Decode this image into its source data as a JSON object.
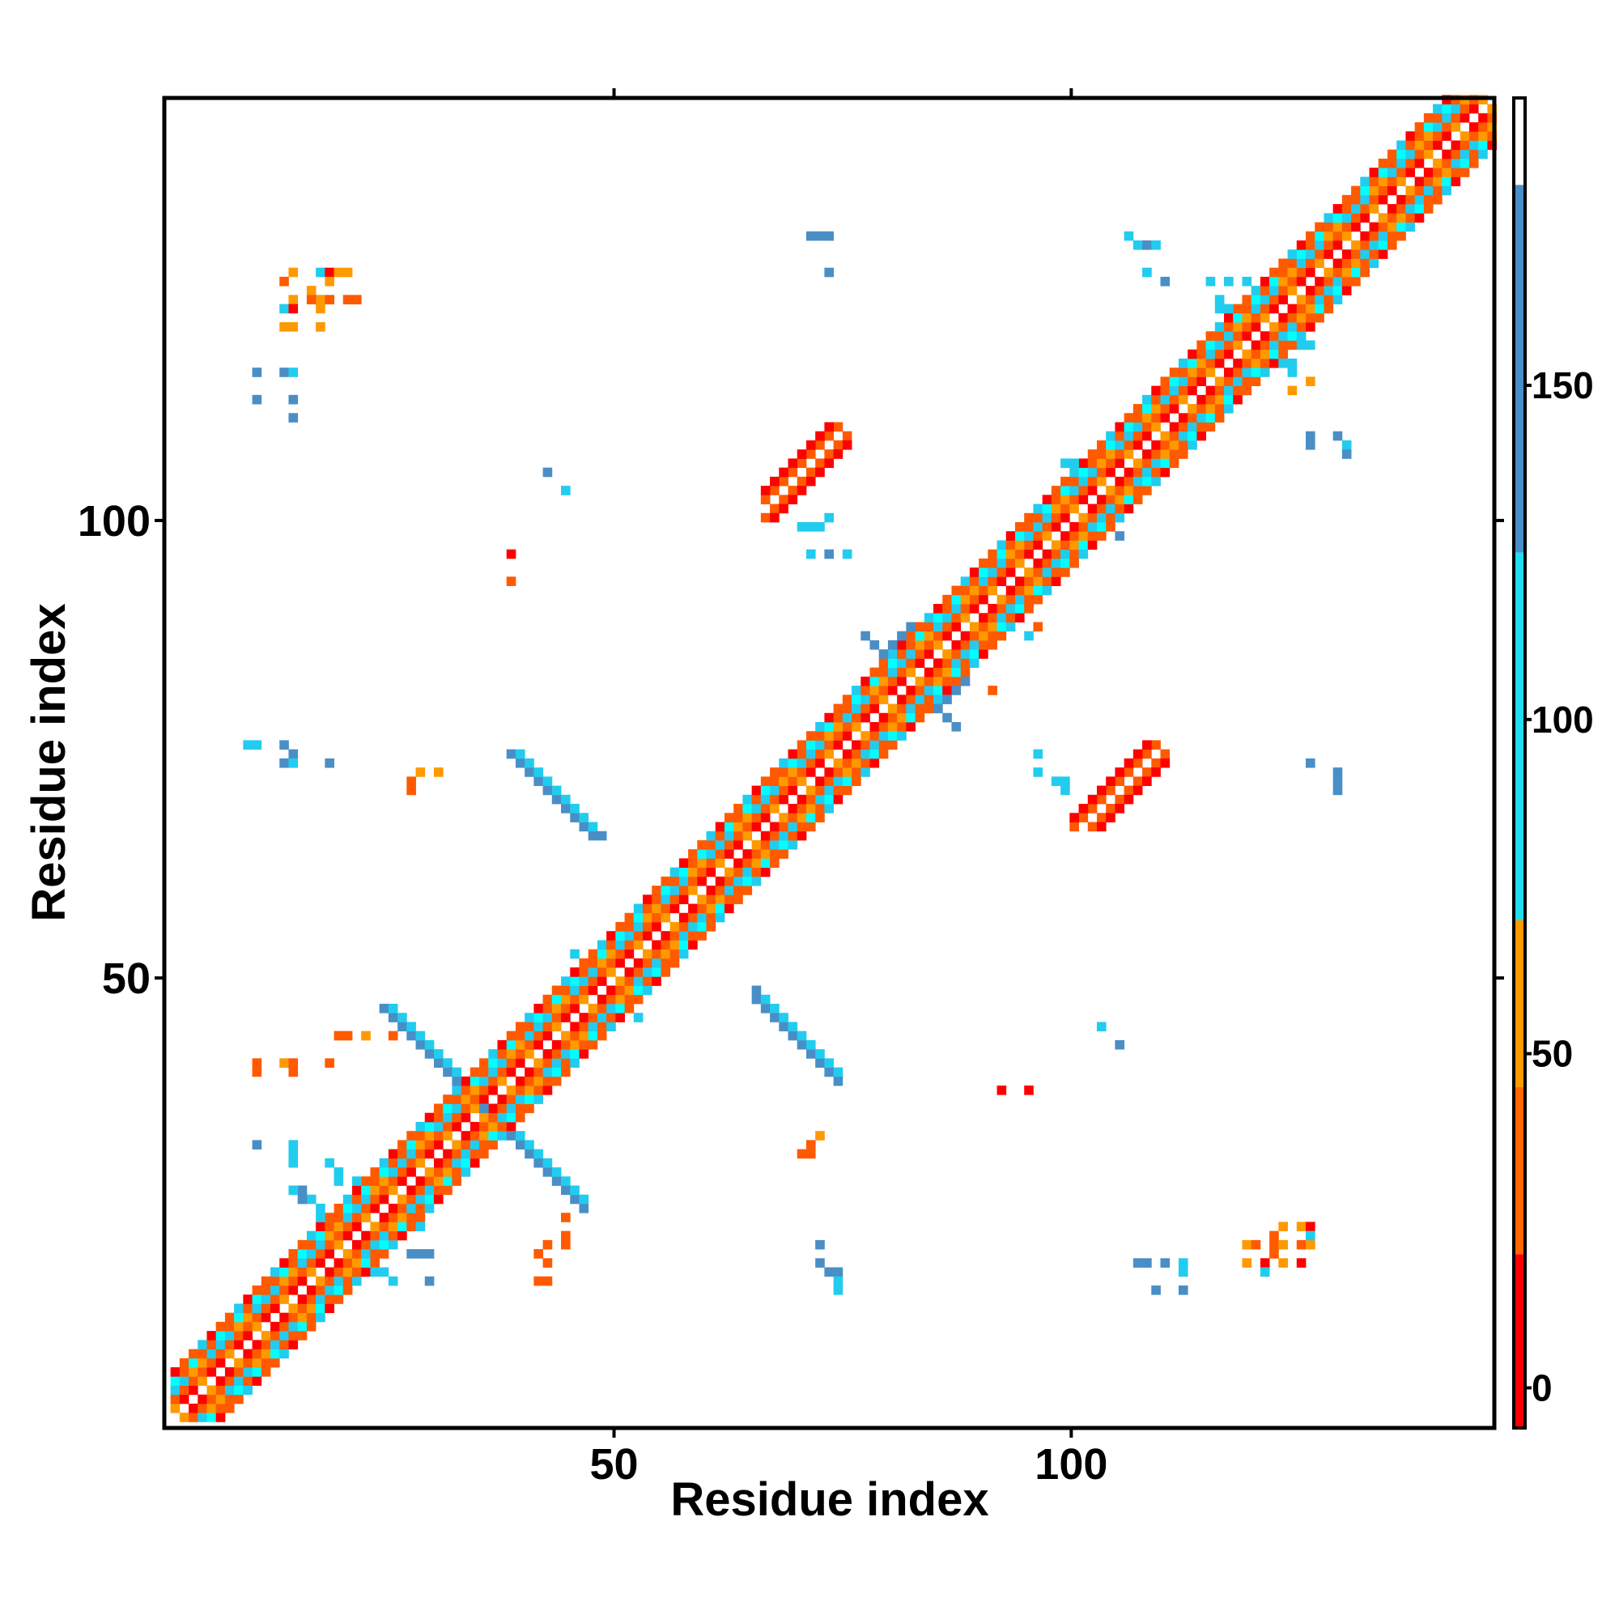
{
  "chart_data": {
    "type": "heatmap",
    "title": "",
    "xlabel": "Residue index",
    "ylabel": "Residue index",
    "n": 146,
    "xlim": [
      1,
      146
    ],
    "ylim": [
      1,
      146
    ],
    "x_ticks": [
      50,
      100
    ],
    "x_tick_labels": [
      "50",
      "100"
    ],
    "y_ticks": [
      50,
      100
    ],
    "y_tick_labels": [
      "50",
      "100"
    ],
    "grid": false,
    "legend_position": "right",
    "colorbar": {
      "min": -6,
      "max": 193,
      "ticks": [
        0,
        50,
        100,
        150
      ],
      "tick_labels": [
        "0",
        "50",
        "100",
        "150"
      ],
      "bands": [
        {
          "from": -6,
          "to": 20,
          "color": "#ff0000"
        },
        {
          "from": 20,
          "to": 45,
          "color": "#ff6600"
        },
        {
          "from": 45,
          "to": 70,
          "color": "#ff9900"
        },
        {
          "from": 70,
          "to": 125,
          "color": "#22ddee"
        },
        {
          "from": 125,
          "to": 180,
          "color": "#4a8ec6"
        },
        {
          "from": 180,
          "to": 193,
          "color": "#ffffff"
        }
      ]
    },
    "palette": {
      "c1": "#ff0000",
      "c2": "#ff5a00",
      "c3": "#ff9900",
      "c4": "#00ffff",
      "c5": "#22ccee",
      "c6": "#4a8ec6"
    },
    "diagonal": {
      "start": 1,
      "end": 146,
      "half_width": 5,
      "note": "contact map: dense band near diagonal with values 0-180"
    },
    "segments": [
      {
        "x0": 26,
        "y0": 44,
        "x1": 36,
        "y1": 34,
        "w": 1,
        "color": "c6"
      },
      {
        "x0": 27,
        "y0": 44,
        "x1": 36,
        "y1": 35,
        "w": 1,
        "color": "c5"
      },
      {
        "x0": 36,
        "y0": 34,
        "x1": 46,
        "y1": 24,
        "w": 1,
        "color": "c6"
      },
      {
        "x0": 37,
        "y0": 34,
        "x1": 46,
        "y1": 25,
        "w": 1,
        "color": "c5"
      },
      {
        "x0": 38,
        "y0": 74,
        "x1": 47,
        "y1": 65,
        "w": 1,
        "color": "c6"
      },
      {
        "x0": 39,
        "y0": 74,
        "x1": 47,
        "y1": 66,
        "w": 1,
        "color": "c5"
      },
      {
        "x0": 65,
        "y0": 48,
        "x1": 74,
        "y1": 39,
        "w": 1,
        "color": "c6"
      },
      {
        "x0": 65,
        "y0": 47,
        "x1": 74,
        "y1": 38,
        "w": 1,
        "color": "c5"
      },
      {
        "x0": 66,
        "y0": 100,
        "x1": 75,
        "y1": 109,
        "w": 1,
        "color": "c2"
      },
      {
        "x0": 67,
        "y0": 100,
        "x1": 75,
        "y1": 108,
        "w": 1,
        "color": "c1"
      },
      {
        "x0": 102,
        "y0": 66,
        "x1": 110,
        "y1": 74,
        "w": 1,
        "color": "c2"
      },
      {
        "x0": 103,
        "y0": 66,
        "x1": 110,
        "y1": 73,
        "w": 1,
        "color": "c1"
      },
      {
        "x0": 79,
        "y0": 85,
        "x1": 82,
        "y1": 88,
        "w": 1,
        "color": "c6"
      },
      {
        "x0": 84,
        "y0": 80,
        "x1": 87,
        "y1": 77,
        "w": 1,
        "color": "c6"
      },
      {
        "x0": 45,
        "y0": 50,
        "x1": 47,
        "y1": 52,
        "w": 1,
        "color": "c5"
      },
      {
        "x0": 50,
        "y0": 47,
        "x1": 52,
        "y1": 45,
        "w": 1,
        "color": "c5"
      },
      {
        "x0": 92,
        "y0": 96,
        "x1": 96,
        "y1": 100,
        "w": 1,
        "color": "c5"
      },
      {
        "x0": 99,
        "y0": 102,
        "x1": 103,
        "y1": 98,
        "w": 1,
        "color": "c5"
      },
      {
        "x0": 117,
        "y0": 121,
        "x1": 120,
        "y1": 124,
        "w": 1,
        "color": "c5"
      },
      {
        "x0": 121,
        "y0": 119,
        "x1": 124,
        "y1": 116,
        "w": 1,
        "color": "c5"
      },
      {
        "x0": 18,
        "y0": 22,
        "x1": 20,
        "y1": 24,
        "w": 1,
        "color": "c5"
      },
      {
        "x0": 22,
        "y0": 18,
        "x1": 25,
        "y1": 16,
        "w": 1,
        "color": "c5"
      }
    ],
    "points": [
      [
        14,
        127,
        "c3"
      ],
      [
        17,
        127,
        "c5"
      ],
      [
        18,
        127,
        "c1"
      ],
      [
        19,
        127,
        "c3"
      ],
      [
        20,
        127,
        "c3"
      ],
      [
        13,
        126,
        "c2"
      ],
      [
        18,
        126,
        "c3"
      ],
      [
        16,
        125,
        "c3"
      ],
      [
        17,
        124,
        "c3"
      ],
      [
        16,
        124,
        "c2"
      ],
      [
        18,
        124,
        "c2"
      ],
      [
        20,
        124,
        "c2"
      ],
      [
        21,
        124,
        "c2"
      ],
      [
        14,
        124,
        "c3"
      ],
      [
        13,
        123,
        "c5"
      ],
      [
        14,
        123,
        "c1"
      ],
      [
        17,
        123,
        "c3"
      ],
      [
        13,
        121,
        "c3"
      ],
      [
        14,
        121,
        "c3"
      ],
      [
        17,
        121,
        "c3"
      ],
      [
        10,
        116,
        "c6"
      ],
      [
        13,
        116,
        "c6"
      ],
      [
        14,
        116,
        "c5"
      ],
      [
        10,
        113,
        "c6"
      ],
      [
        14,
        113,
        "c6"
      ],
      [
        14,
        111,
        "c6"
      ],
      [
        42,
        105,
        "c6"
      ],
      [
        44,
        103,
        "c5"
      ],
      [
        38,
        96,
        "c1"
      ],
      [
        38,
        93,
        "c2"
      ],
      [
        71,
        131,
        "c6"
      ],
      [
        72,
        131,
        "c6"
      ],
      [
        73,
        131,
        "c6"
      ],
      [
        73,
        127,
        "c6"
      ],
      [
        70,
        99,
        "c5"
      ],
      [
        71,
        99,
        "c5"
      ],
      [
        72,
        99,
        "c5"
      ],
      [
        73,
        100,
        "c5"
      ],
      [
        71,
        96,
        "c5"
      ],
      [
        73,
        96,
        "c6"
      ],
      [
        75,
        96,
        "c5"
      ],
      [
        106,
        131,
        "c5"
      ],
      [
        107,
        130,
        "c5"
      ],
      [
        108,
        130,
        "c6"
      ],
      [
        109,
        130,
        "c5"
      ],
      [
        108,
        127,
        "c5"
      ],
      [
        110,
        126,
        "c6"
      ],
      [
        115,
        126,
        "c5"
      ],
      [
        117,
        126,
        "c5"
      ],
      [
        119,
        126,
        "c5"
      ],
      [
        116,
        123,
        "c5"
      ],
      [
        118,
        123,
        "c6"
      ],
      [
        119,
        123,
        "c6"
      ],
      [
        124,
        119,
        "c5"
      ],
      [
        125,
        119,
        "c5"
      ],
      [
        126,
        119,
        "c5"
      ],
      [
        124,
        117,
        "c5"
      ],
      [
        126,
        115,
        "c3"
      ],
      [
        124,
        114,
        "c3"
      ],
      [
        126,
        109,
        "c6"
      ],
      [
        129,
        109,
        "c6"
      ],
      [
        130,
        108,
        "c5"
      ],
      [
        126,
        108,
        "c6"
      ],
      [
        130,
        107,
        "c6"
      ],
      [
        99,
        106,
        "c5"
      ],
      [
        100,
        106,
        "c5"
      ],
      [
        102,
        105,
        "c5"
      ],
      [
        103,
        105,
        "c5"
      ],
      [
        104,
        100,
        "c6"
      ],
      [
        105,
        100,
        "c5"
      ],
      [
        105,
        98,
        "c6"
      ],
      [
        90,
        93,
        "c3"
      ],
      [
        95,
        87,
        "c5"
      ],
      [
        96,
        88,
        "c2"
      ],
      [
        91,
        81,
        "c2"
      ],
      [
        9,
        75,
        "c5"
      ],
      [
        10,
        75,
        "c5"
      ],
      [
        13,
        75,
        "c6"
      ],
      [
        14,
        74,
        "c6"
      ],
      [
        13,
        73,
        "c6"
      ],
      [
        14,
        73,
        "c5"
      ],
      [
        18,
        73,
        "c6"
      ],
      [
        27,
        71,
        "c2"
      ],
      [
        28,
        72,
        "c3"
      ],
      [
        30,
        72,
        "c3"
      ],
      [
        27,
        70,
        "c2"
      ],
      [
        96,
        74,
        "c5"
      ],
      [
        96,
        72,
        "c5"
      ],
      [
        98,
        71,
        "c5"
      ],
      [
        99,
        71,
        "c5"
      ],
      [
        99,
        70,
        "c5"
      ],
      [
        126,
        73,
        "c6"
      ],
      [
        129,
        72,
        "c6"
      ],
      [
        129,
        71,
        "c6"
      ],
      [
        129,
        70,
        "c6"
      ],
      [
        19,
        43,
        "c2"
      ],
      [
        20,
        43,
        "c2"
      ],
      [
        22,
        43,
        "c3"
      ],
      [
        25,
        43,
        "c2"
      ],
      [
        27,
        43,
        "c3"
      ],
      [
        10,
        40,
        "c2"
      ],
      [
        13,
        40,
        "c3"
      ],
      [
        14,
        40,
        "c2"
      ],
      [
        18,
        40,
        "c2"
      ],
      [
        10,
        39,
        "c2"
      ],
      [
        14,
        39,
        "c2"
      ],
      [
        103,
        44,
        "c5"
      ],
      [
        105,
        42,
        "c6"
      ],
      [
        92,
        37,
        "c1"
      ],
      [
        95,
        37,
        "c1"
      ],
      [
        72,
        32,
        "c3"
      ],
      [
        70,
        30,
        "c2"
      ],
      [
        71,
        30,
        "c2"
      ],
      [
        71,
        31,
        "c2"
      ],
      [
        10,
        31,
        "c6"
      ],
      [
        14,
        31,
        "c5"
      ],
      [
        14,
        30,
        "c5"
      ],
      [
        14,
        29,
        "c5"
      ],
      [
        18,
        29,
        "c5"
      ],
      [
        19,
        28,
        "c5"
      ],
      [
        19,
        27,
        "c5"
      ],
      [
        21,
        27,
        "c5"
      ],
      [
        15,
        26,
        "c6"
      ],
      [
        14,
        26,
        "c5"
      ],
      [
        15,
        25,
        "c6"
      ],
      [
        26,
        23,
        "c5"
      ],
      [
        27,
        22,
        "c5"
      ],
      [
        28,
        22,
        "c5"
      ],
      [
        24,
        20,
        "c6"
      ],
      [
        25,
        20,
        "c6"
      ],
      [
        27,
        19,
        "c6"
      ],
      [
        28,
        19,
        "c6"
      ],
      [
        29,
        19,
        "c6"
      ],
      [
        29,
        16,
        "c6"
      ],
      [
        44,
        23,
        "c2"
      ],
      [
        44,
        21,
        "c2"
      ],
      [
        42,
        20,
        "c2"
      ],
      [
        44,
        20,
        "c2"
      ],
      [
        41,
        19,
        "c2"
      ],
      [
        42,
        18,
        "c2"
      ],
      [
        41,
        16,
        "c2"
      ],
      [
        42,
        16,
        "c2"
      ],
      [
        72,
        20,
        "c6"
      ],
      [
        72,
        18,
        "c6"
      ],
      [
        73,
        17,
        "c6"
      ],
      [
        74,
        17,
        "c6"
      ],
      [
        74,
        16,
        "c5"
      ],
      [
        74,
        15,
        "c5"
      ],
      [
        123,
        22,
        "c3"
      ],
      [
        125,
        22,
        "c3"
      ],
      [
        126,
        22,
        "c1"
      ],
      [
        119,
        20,
        "c3"
      ],
      [
        120,
        20,
        "c2"
      ],
      [
        122,
        20,
        "c2"
      ],
      [
        123,
        20,
        "c3"
      ],
      [
        125,
        20,
        "c2"
      ],
      [
        126,
        20,
        "c3"
      ],
      [
        122,
        21,
        "c2"
      ],
      [
        122,
        19,
        "c2"
      ],
      [
        126,
        21,
        "c5"
      ],
      [
        119,
        18,
        "c3"
      ],
      [
        121,
        18,
        "c1"
      ],
      [
        123,
        18,
        "c3"
      ],
      [
        125,
        18,
        "c1"
      ],
      [
        121,
        17,
        "c5"
      ],
      [
        107,
        18,
        "c6"
      ],
      [
        108,
        18,
        "c6"
      ],
      [
        110,
        18,
        "c6"
      ],
      [
        112,
        18,
        "c5"
      ],
      [
        112,
        17,
        "c5"
      ],
      [
        109,
        15,
        "c6"
      ],
      [
        112,
        15,
        "c6"
      ]
    ]
  }
}
